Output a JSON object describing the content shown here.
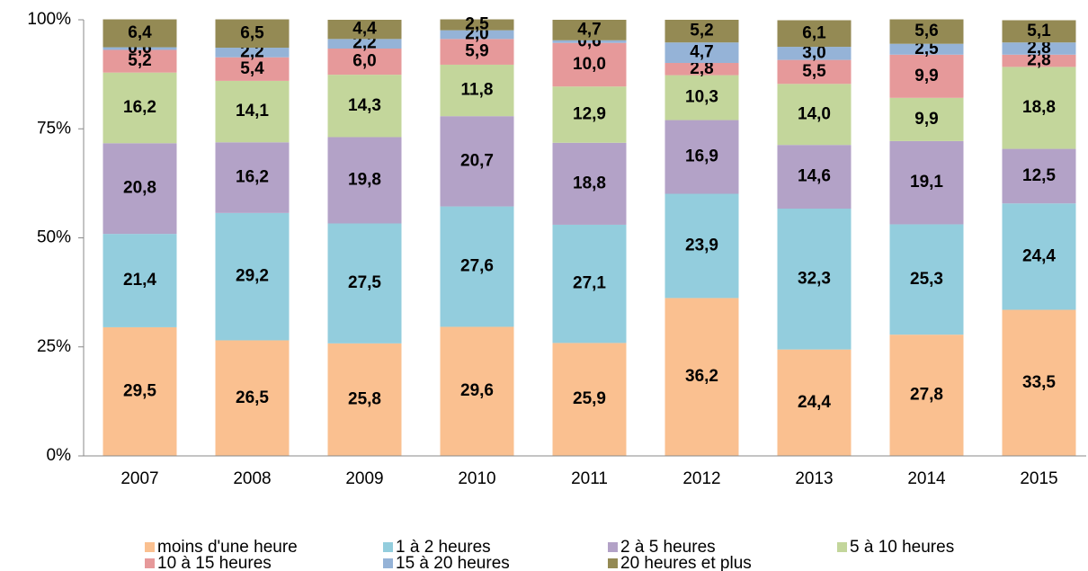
{
  "chart_data": {
    "type": "stacked_bar",
    "categories": [
      "2007",
      "2008",
      "2009",
      "2010",
      "2011",
      "2012",
      "2013",
      "2014",
      "2015"
    ],
    "series": [
      {
        "name": "moins d'une heure",
        "color": "#fac090",
        "values": [
          29.5,
          26.5,
          25.8,
          29.6,
          25.9,
          36.2,
          24.4,
          27.8,
          33.5
        ],
        "value_labels": [
          "29,5",
          "26,5",
          "25,8",
          "29,6",
          "25,9",
          "36,2",
          "24,4",
          "27,8",
          "33,5"
        ]
      },
      {
        "name": "1 à 2 heures",
        "color": "#93cddd",
        "values": [
          21.4,
          29.2,
          27.5,
          27.6,
          27.1,
          23.9,
          32.3,
          25.3,
          24.4
        ],
        "value_labels": [
          "21,4",
          "29,2",
          "27,5",
          "27,6",
          "27,1",
          "23,9",
          "32,3",
          "25,3",
          "24,4"
        ]
      },
      {
        "name": "2 à 5 heures",
        "color": "#b3a2c7",
        "values": [
          20.8,
          16.2,
          19.8,
          20.7,
          18.8,
          16.9,
          14.6,
          19.1,
          12.5
        ],
        "value_labels": [
          "20,8",
          "16,2",
          "19,8",
          "20,7",
          "18,8",
          "16,9",
          "14,6",
          "19,1",
          "12,5"
        ]
      },
      {
        "name": "5 à 10 heures",
        "color": "#c3d69b",
        "values": [
          16.2,
          14.1,
          14.3,
          11.8,
          12.9,
          10.3,
          14.0,
          9.9,
          18.8
        ],
        "value_labels": [
          "16,2",
          "14,1",
          "14,3",
          "11,8",
          "12,9",
          "10,3",
          "14,0",
          "9,9",
          "18,8"
        ]
      },
      {
        "name": "10 à 15 heures",
        "color": "#e6999a",
        "values": [
          5.2,
          5.4,
          6.0,
          5.9,
          10.0,
          2.8,
          5.5,
          9.9,
          2.8
        ],
        "value_labels": [
          "5,2",
          "5,4",
          "6,0",
          "5,9",
          "10,0",
          "2,8",
          "5,5",
          "9,9",
          "2,8"
        ]
      },
      {
        "name": "15 à 20 heures",
        "color": "#95b3d7",
        "values": [
          0.6,
          2.2,
          2.2,
          2.0,
          0.6,
          4.7,
          3.0,
          2.5,
          2.8
        ],
        "value_labels": [
          "0,6",
          "2,2",
          "2,2",
          "2,0",
          "0,6",
          "4,7",
          "3,0",
          "2,5",
          "2,8"
        ]
      },
      {
        "name": "20 heures et plus",
        "color": "#948a54",
        "values": [
          6.4,
          6.5,
          4.4,
          2.5,
          4.7,
          5.2,
          6.1,
          5.6,
          5.1
        ],
        "value_labels": [
          "6,4",
          "6,5",
          "4,4",
          "2,5",
          "4,7",
          "5,2",
          "6,1",
          "5,6",
          "5,1"
        ]
      }
    ],
    "ylim": [
      0,
      100
    ],
    "yticks": [
      {
        "value": 0,
        "label": "0%"
      },
      {
        "value": 25,
        "label": "25%"
      },
      {
        "value": 50,
        "label": "50%"
      },
      {
        "value": 75,
        "label": "75%"
      },
      {
        "value": 100,
        "label": "100%"
      }
    ],
    "grid": false,
    "legend": "bottom"
  }
}
